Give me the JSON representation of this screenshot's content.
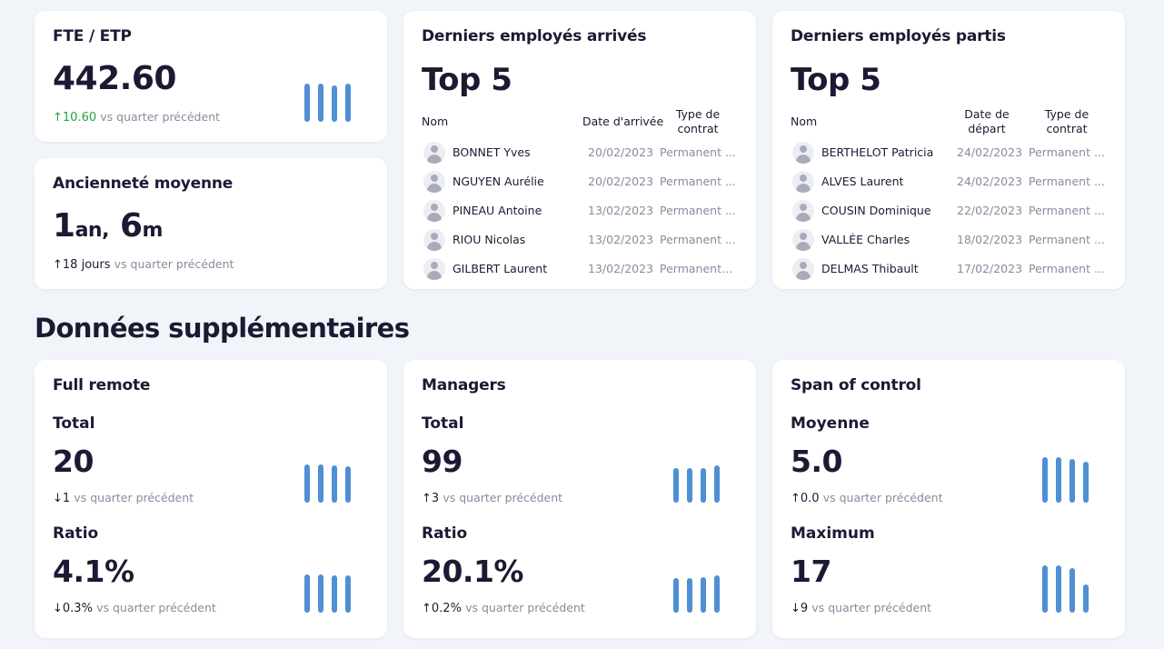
{
  "fte": {
    "title": "FTE / ETP",
    "value": "442.60",
    "delta_arrow": "↑",
    "delta": "10.60",
    "vs": "vs quarter précédent",
    "bars": [
      0.95,
      0.95,
      0.92,
      0.95
    ]
  },
  "seniority": {
    "title": "Ancienneté moyenne",
    "num1": "1",
    "unit1": "an,",
    "num2": "6",
    "unit2": "m",
    "delta_arrow": "↑",
    "delta": "18",
    "delta_unit": "jours",
    "vs": "vs quarter précédent"
  },
  "arrivals": {
    "title": "Derniers employés arrivés",
    "big": "Top 5",
    "col_name": "Nom",
    "col_date": "Date d'arrivée",
    "col_type_1": "Type de",
    "col_type_2": "contrat",
    "rows": [
      {
        "name": "BONNET Yves",
        "date": "20/02/2023",
        "type": "Permanent ..."
      },
      {
        "name": "NGUYEN Aurélie",
        "date": "20/02/2023",
        "type": "Permanent ..."
      },
      {
        "name": "PINEAU Antoine",
        "date": "13/02/2023",
        "type": "Permanent ..."
      },
      {
        "name": "RIOU Nicolas",
        "date": "13/02/2023",
        "type": "Permanent ..."
      },
      {
        "name": "GILBERT Laurent",
        "date": "13/02/2023",
        "type": "Permanent c..."
      }
    ]
  },
  "departures": {
    "title": "Derniers employés partis",
    "big": "Top 5",
    "col_name": "Nom",
    "col_date_1": "Date de",
    "col_date_2": "départ",
    "col_type_1": "Type de",
    "col_type_2": "contrat",
    "rows": [
      {
        "name": "BERTHELOT Patricia",
        "date": "24/02/2023",
        "type": "Permanent ..."
      },
      {
        "name": "ALVES Laurent",
        "date": "24/02/2023",
        "type": "Permanent ..."
      },
      {
        "name": "COUSIN Dominique",
        "date": "22/02/2023",
        "type": "Permanent ..."
      },
      {
        "name": "VALLÉE Charles",
        "date": "18/02/2023",
        "type": "Permanent ..."
      },
      {
        "name": "DELMAS Thibault",
        "date": "17/02/2023",
        "type": "Permanent ..."
      }
    ]
  },
  "section_title": "Données supplémentaires",
  "full_remote": {
    "title": "Full remote",
    "total_label": "Total",
    "total": "20",
    "total_arrow": "↓",
    "total_delta": "1",
    "ratio_label": "Ratio",
    "ratio": "4.1%",
    "ratio_arrow": "↓",
    "ratio_delta": "0.3%",
    "vs": "vs quarter précédent",
    "total_bars": [
      1,
      1,
      0.97,
      0.95
    ],
    "ratio_bars": [
      1,
      1,
      0.97,
      0.97
    ]
  },
  "managers": {
    "title": "Managers",
    "total_label": "Total",
    "total": "99",
    "total_arrow": "↑",
    "total_delta": "3",
    "ratio_label": "Ratio",
    "ratio": "20.1%",
    "ratio_arrow": "↑",
    "ratio_delta": "0.2%",
    "vs": "vs quarter précédent",
    "total_bars": [
      0.9,
      0.9,
      0.9,
      0.97
    ],
    "ratio_bars": [
      0.9,
      0.9,
      0.93,
      0.97
    ]
  },
  "span": {
    "title": "Span of control",
    "avg_label": "Moyenne",
    "avg": "5.0",
    "avg_arrow": "↑",
    "avg_delta": "0.0",
    "max_label": "Maximum",
    "max": "17",
    "max_arrow": "↓",
    "max_delta": "9",
    "vs": "vs quarter précédent",
    "avg_bars": [
      1,
      1,
      0.96,
      0.9
    ],
    "max_bars": [
      1,
      1,
      0.94,
      0.6
    ]
  },
  "colors": {
    "bar": "#4f8fd4",
    "green": "#22a63e",
    "text": "#1b1a33",
    "muted": "#8a8a9e"
  }
}
